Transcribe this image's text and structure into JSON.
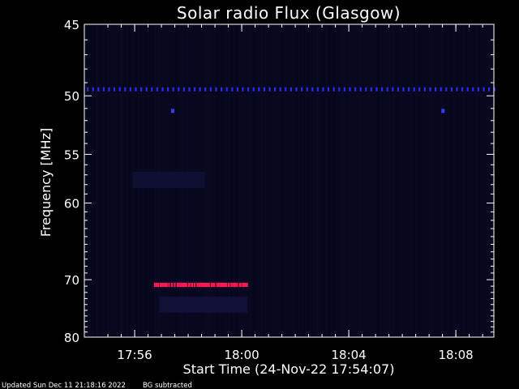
{
  "chart_data": {
    "type": "heatmap",
    "title": "Solar radio Flux (Glasgow)",
    "xlabel": "Start Time (24-Nov-22 17:54:07)",
    "ylabel": "Frequency [MHz]",
    "x_axis_unit": "minutes after 17:54:07",
    "xlim": [
      0,
      15.3
    ],
    "xticks": [
      {
        "label": "17:56",
        "value": 1.88
      },
      {
        "label": "18:00",
        "value": 5.88
      },
      {
        "label": "18:04",
        "value": 9.88
      },
      {
        "label": "18:08",
        "value": 13.88
      }
    ],
    "y_axis_unit": "MHz",
    "y_scale": "reciprocal",
    "ylim": [
      45,
      80
    ],
    "yticks": [
      45,
      50,
      55,
      60,
      70,
      80
    ],
    "grid": false,
    "features": [
      {
        "kind": "dotted-line",
        "freq_mhz": 49.5,
        "x_start": 0,
        "x_end": 15.3,
        "color": "#2a2aff"
      },
      {
        "kind": "point",
        "freq_mhz": 51.2,
        "x": 3.3,
        "color": "#3a3aff"
      },
      {
        "kind": "point",
        "freq_mhz": 51.2,
        "x": 13.4,
        "color": "#3a3aff"
      },
      {
        "kind": "emission-band",
        "freq_mhz": 70.8,
        "x_start": 2.6,
        "x_end": 6.0,
        "color": "#ff1a4a"
      },
      {
        "kind": "faint-band",
        "freq_mhz": 57.5,
        "x_start": 1.8,
        "x_end": 4.5,
        "color": "#12123a"
      },
      {
        "kind": "faint-band",
        "freq_mhz": 74.0,
        "x_start": 2.8,
        "x_end": 6.1,
        "color": "#14143e"
      }
    ],
    "background_color": "#06061a"
  },
  "footer": {
    "updated": "Updated Sun Dec 11 21:18:16 2022",
    "note": "BG subtracted"
  }
}
